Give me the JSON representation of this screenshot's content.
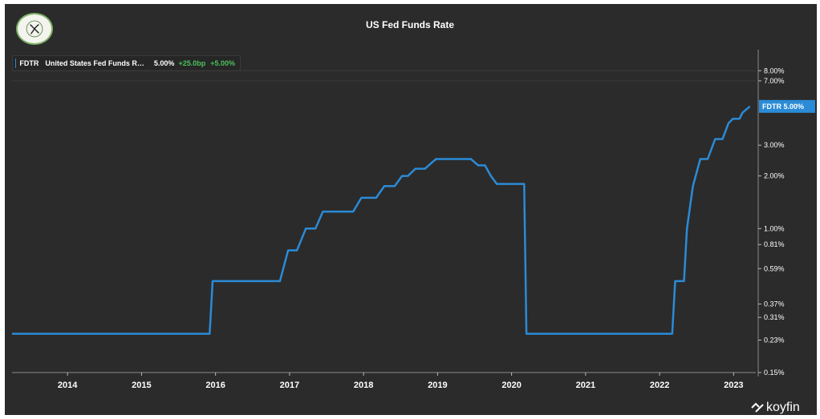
{
  "chart_data": {
    "type": "line",
    "title": "US Fed Funds Rate",
    "legend": {
      "symbol": "FDTR",
      "name": "United States Fed Funds R…",
      "value": "5.00%",
      "change_bp": "+25.0bp",
      "change_pct": "+5.00%"
    },
    "price_tag": {
      "symbol": "FDTR",
      "value": "5.00%"
    },
    "y_scale": "log",
    "y_ticks": [
      0.15,
      0.23,
      0.31,
      0.37,
      0.59,
      0.81,
      1.0,
      2.0,
      3.0,
      7.0,
      8.0
    ],
    "y_tick_labels": [
      "0.15%",
      "0.23%",
      "0.31%",
      "0.37%",
      "0.59%",
      "0.81%",
      "1.00%",
      "2.00%",
      "3.00%",
      "7.00%",
      "8.00%"
    ],
    "x_ticks": [
      2014,
      2015,
      2016,
      2017,
      2018,
      2019,
      2020,
      2021,
      2022,
      2023
    ],
    "x_tick_labels": [
      "2014",
      "2015",
      "2016",
      "2017",
      "2018",
      "2019",
      "2020",
      "2021",
      "2022",
      "2023"
    ],
    "xlim": [
      2013.25,
      2023.3
    ],
    "ylim": [
      0.15,
      9.5
    ],
    "grid": false,
    "series": [
      {
        "name": "FDTR",
        "color": "#2b8bd6",
        "x": [
          2013.25,
          2015.92,
          2015.96,
          2016.87,
          2016.98,
          2017.1,
          2017.22,
          2017.35,
          2017.45,
          2017.86,
          2017.97,
          2018.17,
          2018.28,
          2018.42,
          2018.52,
          2018.6,
          2018.7,
          2018.83,
          2018.93,
          2018.98,
          2019.45,
          2019.55,
          2019.64,
          2019.72,
          2019.8,
          2020.17,
          2020.2,
          2022.17,
          2022.21,
          2022.33,
          2022.37,
          2022.45,
          2022.55,
          2022.65,
          2022.75,
          2022.85,
          2022.93,
          2022.99,
          2023.08,
          2023.12,
          2023.22
        ],
        "y": [
          0.25,
          0.25,
          0.5,
          0.5,
          0.75,
          0.75,
          1.0,
          1.0,
          1.25,
          1.25,
          1.5,
          1.5,
          1.75,
          1.75,
          2.0,
          2.0,
          2.2,
          2.2,
          2.4,
          2.5,
          2.5,
          2.3,
          2.3,
          2.0,
          1.8,
          1.8,
          0.25,
          0.25,
          0.5,
          0.5,
          1.0,
          1.75,
          2.5,
          2.5,
          3.25,
          3.25,
          4.0,
          4.25,
          4.25,
          4.6,
          5.0
        ]
      }
    ]
  },
  "brand": {
    "name": "koyfin"
  },
  "logo": {
    "name": "Street Capital logo"
  }
}
